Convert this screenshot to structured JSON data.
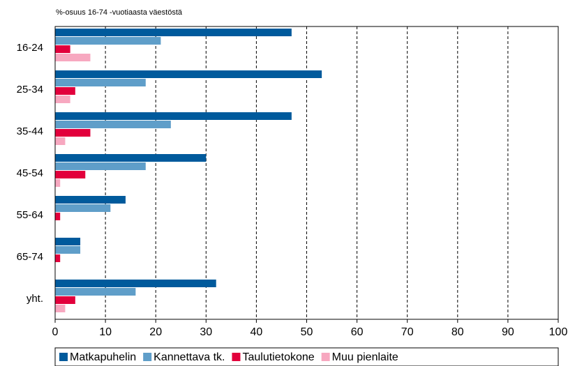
{
  "chart_data": {
    "type": "hbar",
    "subtitle": "%-osuus 16-74 -vuotiaasta väestöstä",
    "categories": [
      "16-24",
      "25-34",
      "35-44",
      "45-54",
      "55-64",
      "65-74",
      "yht."
    ],
    "series": [
      {
        "name": "Matkapuhelin",
        "color": "#005a9c",
        "values": [
          47,
          53,
          47,
          30,
          14,
          5,
          32
        ]
      },
      {
        "name": "Kannettava tk.",
        "color": "#5f9ec9",
        "values": [
          21,
          18,
          23,
          18,
          11,
          5,
          16
        ]
      },
      {
        "name": "Taulutietokone",
        "color": "#e2003c",
        "values": [
          3,
          4,
          7,
          6,
          1,
          1,
          4
        ]
      },
      {
        "name": "Muu pienlaite",
        "color": "#f7a8c0",
        "values": [
          7,
          3,
          2,
          1,
          0,
          0,
          2
        ]
      }
    ],
    "xlim": [
      0,
      100
    ],
    "xticks": [
      0,
      10,
      20,
      30,
      40,
      50,
      60,
      70,
      80,
      90,
      100
    ],
    "grid": true,
    "legend": "bottom"
  }
}
